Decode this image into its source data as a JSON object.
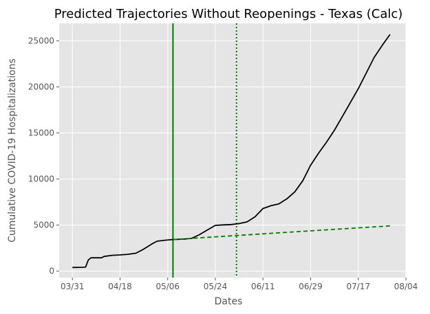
{
  "chart_data": {
    "type": "line",
    "title": "Predicted Trajectories Without Reopenings - Texas (Calc)",
    "xlabel": "Dates",
    "ylabel": "Cumulative COVID-19 Hospitalizations",
    "x_ticks": [
      "03/31",
      "04/18",
      "05/06",
      "05/24",
      "06/11",
      "06/29",
      "07/17",
      "08/04"
    ],
    "y_ticks": [
      "0",
      "5000",
      "10000",
      "15000",
      "20000",
      "25000"
    ],
    "xlim": [
      "2020-03-26",
      "2020-08-04"
    ],
    "ylim": [
      -700,
      26900
    ],
    "grid": true,
    "legend": "none",
    "background": "#e5e5e5",
    "vertical_lines": [
      {
        "x": "2020-05-08",
        "style": "solid",
        "color": "#007a00"
      },
      {
        "x": "2020-06-01",
        "style": "dotted",
        "color": "#007a00"
      }
    ],
    "series": [
      {
        "style": "solid",
        "color": "#000000",
        "points": [
          [
            "2020-03-31",
            400
          ],
          [
            "2020-04-04",
            420
          ],
          [
            "2020-04-05",
            450
          ],
          [
            "2020-04-06",
            1200
          ],
          [
            "2020-04-07",
            1450
          ],
          [
            "2020-04-11",
            1450
          ],
          [
            "2020-04-12",
            1600
          ],
          [
            "2020-04-15",
            1720
          ],
          [
            "2020-04-18",
            1760
          ],
          [
            "2020-04-21",
            1830
          ],
          [
            "2020-04-24",
            1950
          ],
          [
            "2020-04-27",
            2400
          ],
          [
            "2020-04-30",
            2950
          ],
          [
            "2020-05-02",
            3250
          ],
          [
            "2020-05-05",
            3360
          ],
          [
            "2020-05-08",
            3430
          ],
          [
            "2020-05-12",
            3480
          ],
          [
            "2020-05-15",
            3550
          ],
          [
            "2020-05-18",
            3960
          ],
          [
            "2020-05-21",
            4480
          ],
          [
            "2020-05-24",
            4970
          ],
          [
            "2020-05-27",
            5020
          ],
          [
            "2020-05-30",
            5060
          ],
          [
            "2020-06-02",
            5160
          ],
          [
            "2020-06-05",
            5350
          ],
          [
            "2020-06-08",
            5900
          ],
          [
            "2020-06-11",
            6800
          ],
          [
            "2020-06-14",
            7100
          ],
          [
            "2020-06-17",
            7300
          ],
          [
            "2020-06-20",
            7850
          ],
          [
            "2020-06-23",
            8600
          ],
          [
            "2020-06-26",
            9800
          ],
          [
            "2020-06-29",
            11500
          ],
          [
            "2020-07-02",
            12800
          ],
          [
            "2020-07-05",
            14000
          ],
          [
            "2020-07-08",
            15300
          ],
          [
            "2020-07-11",
            16800
          ],
          [
            "2020-07-14",
            18300
          ],
          [
            "2020-07-17",
            19800
          ],
          [
            "2020-07-20",
            21500
          ],
          [
            "2020-07-23",
            23200
          ],
          [
            "2020-07-26",
            24500
          ],
          [
            "2020-07-29",
            25700
          ]
        ]
      },
      {
        "style": "dashed",
        "color": "#007a00",
        "points": [
          [
            "2020-05-08",
            3430
          ],
          [
            "2020-07-29",
            4920
          ]
        ]
      }
    ]
  }
}
